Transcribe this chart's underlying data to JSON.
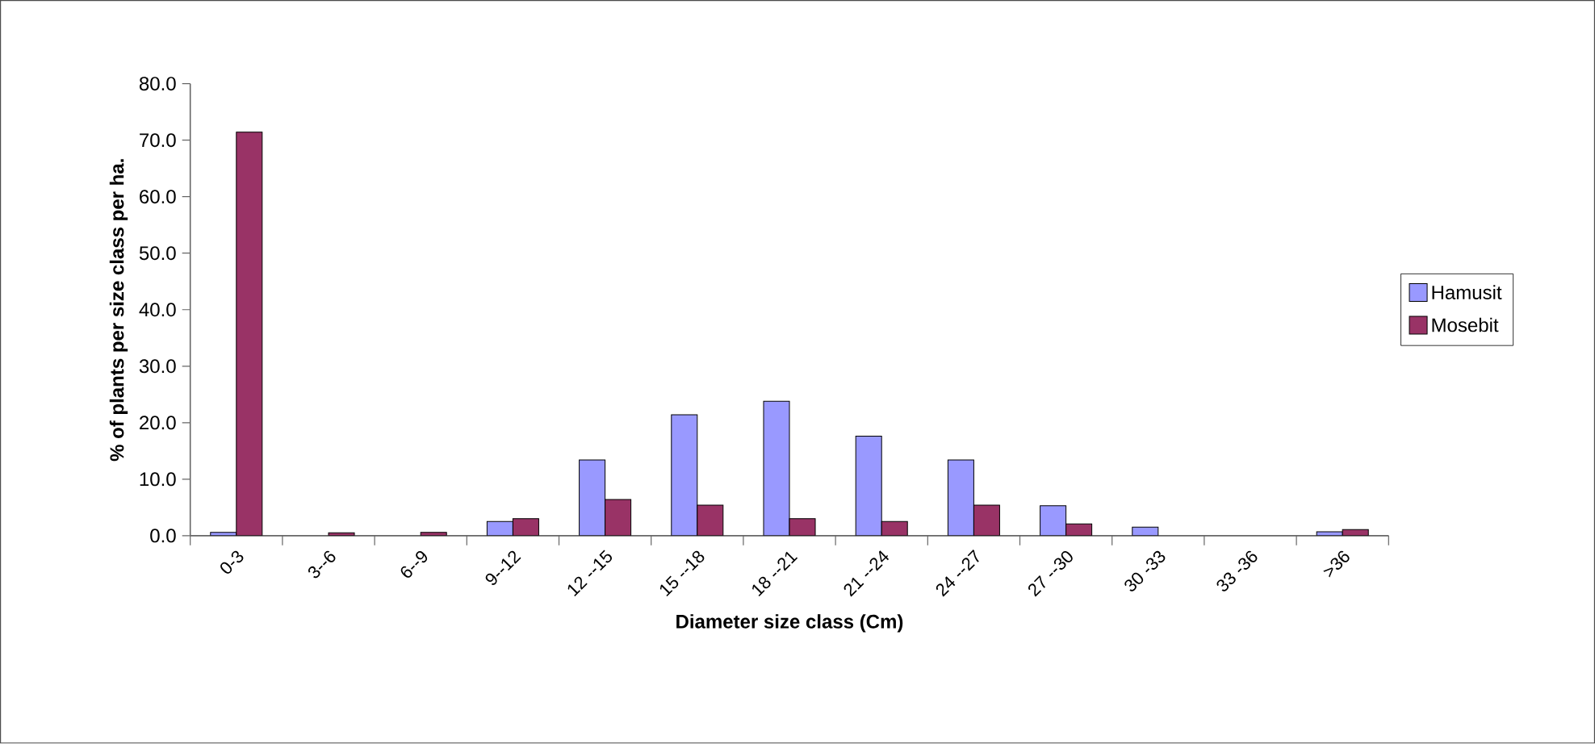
{
  "chart_data": {
    "type": "bar",
    "xlabel": "Diameter size class (Cm)",
    "ylabel": "% of plants per size class per ha.",
    "categories": [
      "0-3",
      "3--6",
      "6--9",
      "9--12",
      "12 --15",
      "15 --18",
      "18 --21",
      "21 --24",
      "24 --27",
      "27 --30",
      "30 -33",
      "33 -36",
      ">36"
    ],
    "series": [
      {
        "name": "Hamusit",
        "color": "#9999ff",
        "values": [
          0.6,
          null,
          null,
          2.5,
          13.4,
          21.4,
          23.8,
          17.6,
          13.4,
          5.3,
          1.5,
          null,
          0.7
        ]
      },
      {
        "name": "Mosebit",
        "color": "#993366",
        "values": [
          71.4,
          0.5,
          0.6,
          3.0,
          6.4,
          5.4,
          3.0,
          2.5,
          5.4,
          2.1,
          null,
          null,
          1.1
        ]
      }
    ],
    "ylim": [
      0,
      80
    ],
    "yticks": [
      {
        "value": 0,
        "label": "0.0"
      },
      {
        "value": 10,
        "label": "10.0"
      },
      {
        "value": 20,
        "label": "20.0"
      },
      {
        "value": 30,
        "label": "30.0"
      },
      {
        "value": 40,
        "label": "40.0"
      },
      {
        "value": 50,
        "label": "50.0"
      },
      {
        "value": 60,
        "label": "60.0"
      },
      {
        "value": 70,
        "label": "70.0"
      },
      {
        "value": 80,
        "label": "80.0"
      }
    ],
    "grid": false,
    "legend": "right"
  }
}
